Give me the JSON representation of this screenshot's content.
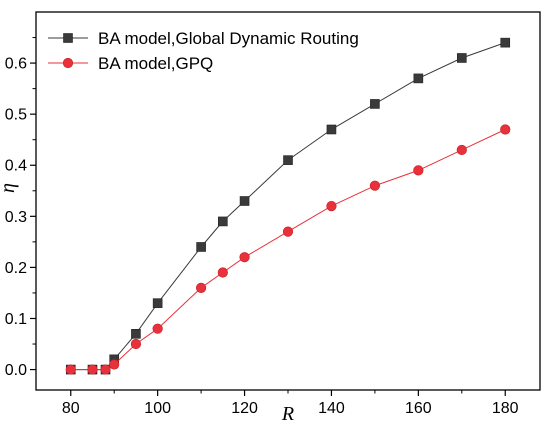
{
  "chart_data": {
    "type": "line",
    "xlabel": "R",
    "ylabel": "η",
    "xlim": [
      72,
      188
    ],
    "ylim": [
      -0.04,
      0.7
    ],
    "xticks": [
      80,
      100,
      120,
      140,
      160,
      180
    ],
    "yticks": [
      0.0,
      0.1,
      0.2,
      0.3,
      0.4,
      0.5,
      0.6
    ],
    "ytick_labels": [
      "0.0",
      "0.1",
      "0.2",
      "0.3",
      "0.4",
      "0.5",
      "0.6"
    ],
    "grid": false,
    "legend_position": "top-left",
    "series": [
      {
        "name": "BA model,Global Dynamic Routing",
        "marker": "square",
        "color": "#3a3a3a",
        "x": [
          80,
          85,
          88,
          90,
          95,
          100,
          110,
          115,
          120,
          130,
          140,
          150,
          160,
          170,
          180
        ],
        "y": [
          0.0,
          0.0,
          0.0,
          0.02,
          0.07,
          0.13,
          0.24,
          0.29,
          0.33,
          0.41,
          0.47,
          0.52,
          0.57,
          0.61,
          0.64
        ]
      },
      {
        "name": "BA model,GPQ",
        "marker": "circle",
        "color": "#e8313a",
        "x": [
          80,
          85,
          88,
          90,
          95,
          100,
          110,
          115,
          120,
          130,
          140,
          150,
          160,
          170,
          180
        ],
        "y": [
          0.0,
          0.0,
          0.0,
          0.01,
          0.05,
          0.08,
          0.16,
          0.19,
          0.22,
          0.27,
          0.32,
          0.36,
          0.39,
          0.43,
          0.47
        ]
      }
    ]
  }
}
